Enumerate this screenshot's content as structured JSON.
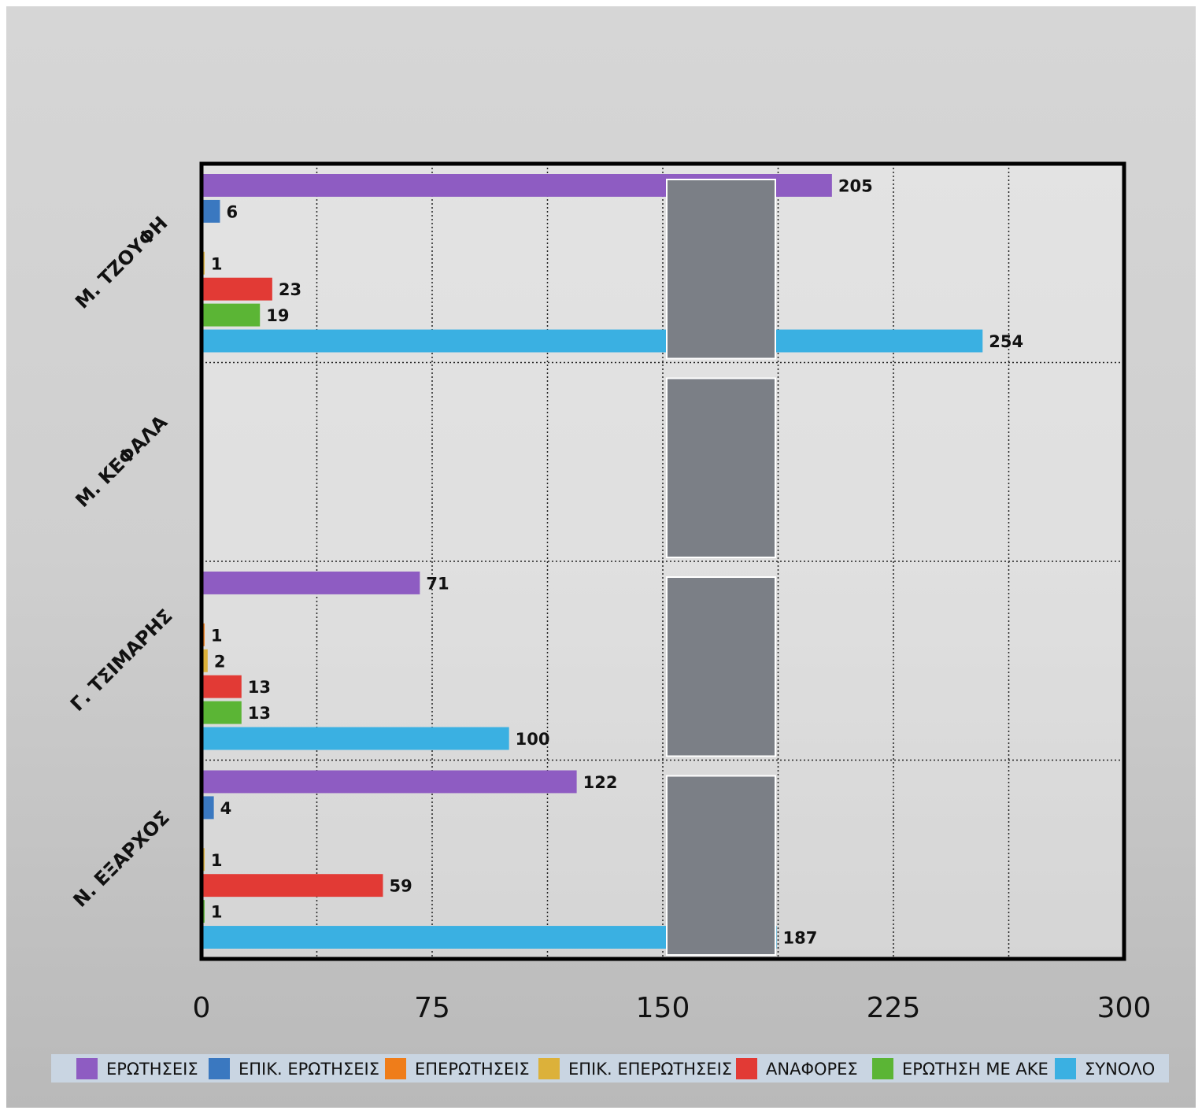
{
  "chart_data": {
    "type": "hbar",
    "categories": [
      "Μ. ΤΖΟΥΦΗ",
      "Μ. ΚΕΦΑΛΑ",
      "Γ. ΤΣΙΜΑΡΗΣ",
      "Ν. ΕΞΑΡΧΟΣ"
    ],
    "series": [
      {
        "name": "ΕΡΩΤΗΣΕΙΣ",
        "color": "#8e5cc2",
        "values": [
          205,
          null,
          71,
          122
        ]
      },
      {
        "name": "ΕΠΙΚ. ΕΡΩΤΗΣΕΙΣ",
        "color": "#3a78c0",
        "values": [
          6,
          null,
          null,
          4
        ]
      },
      {
        "name": "ΕΠΕΡΩΤΗΣΕΙΣ",
        "color": "#ef7d1a",
        "values": [
          null,
          null,
          1,
          null
        ]
      },
      {
        "name": "ΕΠΙΚ. ΕΠΕΡΩΤΗΣΕΙΣ",
        "color": "#dcb13a",
        "values": [
          1,
          null,
          2,
          1
        ]
      },
      {
        "name": "ΑΝΑΦΟΡΕΣ",
        "color": "#e23a35",
        "values": [
          23,
          null,
          13,
          59
        ]
      },
      {
        "name": "ΕΡΩΤΗΣΗ ΜΕ ΑΚΕ",
        "color": "#5bb535",
        "values": [
          19,
          null,
          13,
          1
        ]
      },
      {
        "name": "ΣΥΝΟΛΟ",
        "color": "#3ab0e2",
        "values": [
          254,
          null,
          100,
          187
        ]
      }
    ],
    "xlim": [
      0,
      300
    ],
    "xticks": [
      0,
      75,
      150,
      225,
      300
    ],
    "xgrid": [
      37.5,
      75,
      112.5,
      150,
      187.5,
      225,
      262.5
    ],
    "grid": true,
    "legend": "bottom"
  }
}
